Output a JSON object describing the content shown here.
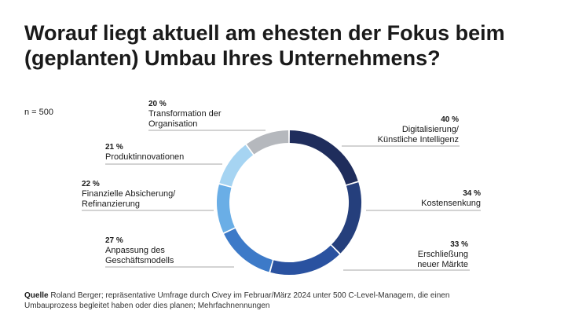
{
  "title": "Worauf liegt aktuell am ehesten der Fokus beim (geplanten) Umbau Ihres Unternehmens?",
  "note": "n = 500",
  "chart_data": {
    "type": "pie",
    "style": "donut",
    "categories": [
      "Digitalisierung/ Künstliche Intelligenz",
      "Kostensenkung",
      "Erschließung neuer Märkte",
      "Anpassung des Geschäftsmodells",
      "Finanzielle Absicherung/ Refinanzierung",
      "Produktinnovationen",
      "Transformation der Organisation"
    ],
    "values": [
      40,
      34,
      33,
      27,
      22,
      21,
      20
    ],
    "value_labels": [
      "40 %",
      "34 %",
      "33 %",
      "27 %",
      "22 %",
      "21 %",
      "20 %"
    ],
    "label_lines": [
      [
        "Digitalisierung/",
        "Künstliche Intelligenz"
      ],
      [
        "Kostensenkung"
      ],
      [
        "Erschließung",
        "neuer Märkte"
      ],
      [
        "Anpassung des",
        "Geschäftsmodells"
      ],
      [
        "Finanzielle Absicherung/",
        "Refinanzierung"
      ],
      [
        "Produktinnovationen"
      ],
      [
        "Transformation der",
        "Organisation"
      ]
    ],
    "colors": [
      "#1f2d5c",
      "#253f7c",
      "#2a52a0",
      "#3d7ac8",
      "#6aaee6",
      "#a6d4f2",
      "#b5b8bd"
    ]
  },
  "source": {
    "label": "Quelle",
    "text": "Roland Berger; repräsentative Umfrage durch Civey im Februar/März 2024 unter 500 C-Level-Managern, die einen Umbauprozess begleitet haben oder dies planen; Mehrfachnennungen"
  }
}
